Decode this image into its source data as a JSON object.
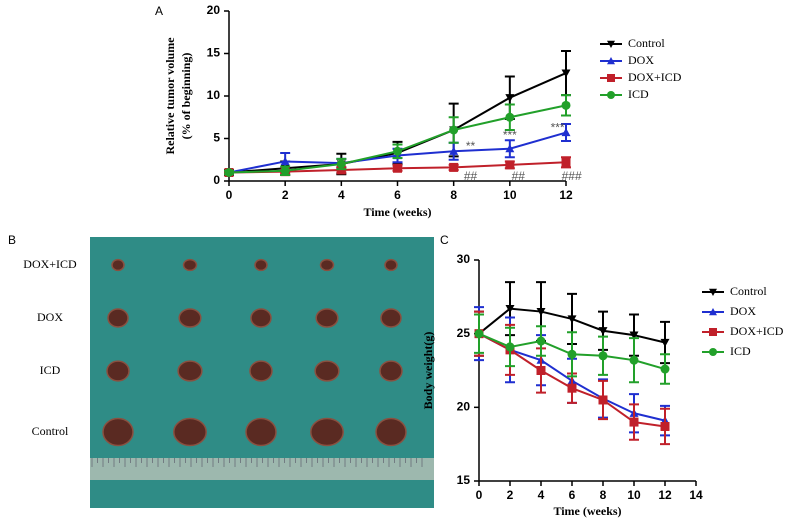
{
  "chart_data": [
    {
      "type": "line",
      "panel_label": "A",
      "x_label": "Time (weeks)",
      "y_label": [
        "Relative tumor volume",
        "(% of beginning)"
      ],
      "x": [
        0,
        2,
        4,
        6,
        8,
        10,
        12
      ],
      "xlim": [
        0,
        12
      ],
      "xticks": [
        0,
        2,
        4,
        6,
        8,
        10,
        12
      ],
      "ylim": [
        0,
        20
      ],
      "yticks": [
        0,
        5,
        10,
        15,
        20
      ],
      "series": [
        {
          "name": "Control",
          "color": "#000000",
          "marker": "triangle-down",
          "values": [
            1,
            1.5,
            2,
            3.3,
            6,
            9.8,
            12.7
          ],
          "errors": [
            0.3,
            0.8,
            1.2,
            1.3,
            3.1,
            2.5,
            2.6
          ]
        },
        {
          "name": "DOX",
          "color": "#1f2fd0",
          "marker": "triangle-up",
          "values": [
            1,
            2.3,
            2.1,
            3,
            3.5,
            3.8,
            5.7
          ],
          "errors": [
            0.2,
            1,
            0.5,
            0.8,
            1,
            1,
            1
          ]
        },
        {
          "name": "DOX+ICD",
          "color": "#c0202a",
          "marker": "square",
          "values": [
            1,
            1.1,
            1.3,
            1.5,
            1.6,
            1.9,
            2.2
          ],
          "errors": [
            0.1,
            0.2,
            0.3,
            0.3,
            0.3,
            0.4,
            0.6
          ]
        },
        {
          "name": "ICD",
          "color": "#22a02a",
          "marker": "circle",
          "values": [
            1,
            1.2,
            2,
            3.5,
            6,
            7.5,
            8.9
          ],
          "errors": [
            0.2,
            0.5,
            0.6,
            0.8,
            1.5,
            1.5,
            1.2
          ]
        }
      ],
      "annotations": [
        {
          "text": "**",
          "x": 8.6,
          "y": 4
        },
        {
          "text": "***",
          "x": 10,
          "y": 5.3
        },
        {
          "text": "***",
          "x": 11.7,
          "y": 6.2
        },
        {
          "text": "##",
          "x": 8.6,
          "y": 0.5
        },
        {
          "text": "##",
          "x": 10.3,
          "y": 0.5
        },
        {
          "text": "###",
          "x": 12.2,
          "y": 0.5
        }
      ]
    },
    {
      "type": "line",
      "panel_label": "C",
      "x_label": "Time (weeks)",
      "y_label": "Body weight(g)",
      "x": [
        0,
        2,
        4,
        6,
        8,
        10,
        12
      ],
      "xlim": [
        0,
        14
      ],
      "xticks": [
        0,
        2,
        4,
        6,
        8,
        10,
        12,
        14
      ],
      "ylim": [
        15,
        30
      ],
      "yticks": [
        15,
        20,
        25,
        30
      ],
      "series": [
        {
          "name": "Control",
          "color": "#000000",
          "marker": "triangle-down",
          "values": [
            25,
            26.7,
            26.5,
            26,
            25.2,
            24.9,
            24.4
          ],
          "errors": [
            1.5,
            1.8,
            2,
            1.7,
            1.3,
            1.4,
            1.4
          ]
        },
        {
          "name": "DOX",
          "color": "#1f2fd0",
          "marker": "triangle-up",
          "values": [
            25,
            23.9,
            23.2,
            21.8,
            20.6,
            19.6,
            19.1
          ],
          "errors": [
            1.8,
            2.2,
            1.7,
            1.5,
            1.3,
            1.3,
            1
          ]
        },
        {
          "name": "DOX+ICD",
          "color": "#c0202a",
          "marker": "square",
          "values": [
            25,
            23.9,
            22.5,
            21.3,
            20.5,
            19,
            18.7
          ],
          "errors": [
            1.5,
            1.7,
            1.5,
            1,
            1.3,
            1.2,
            1.2
          ]
        },
        {
          "name": "ICD",
          "color": "#22a02a",
          "marker": "circle",
          "values": [
            25,
            24.1,
            24.5,
            23.6,
            23.5,
            23.2,
            22.6
          ],
          "errors": [
            1.3,
            1.3,
            1,
            1.5,
            1.3,
            1.5,
            1
          ]
        }
      ]
    }
  ],
  "photo": {
    "panel_label": "B",
    "rows": [
      "DOX+ICD",
      "DOX",
      "ICD",
      "Control"
    ]
  }
}
